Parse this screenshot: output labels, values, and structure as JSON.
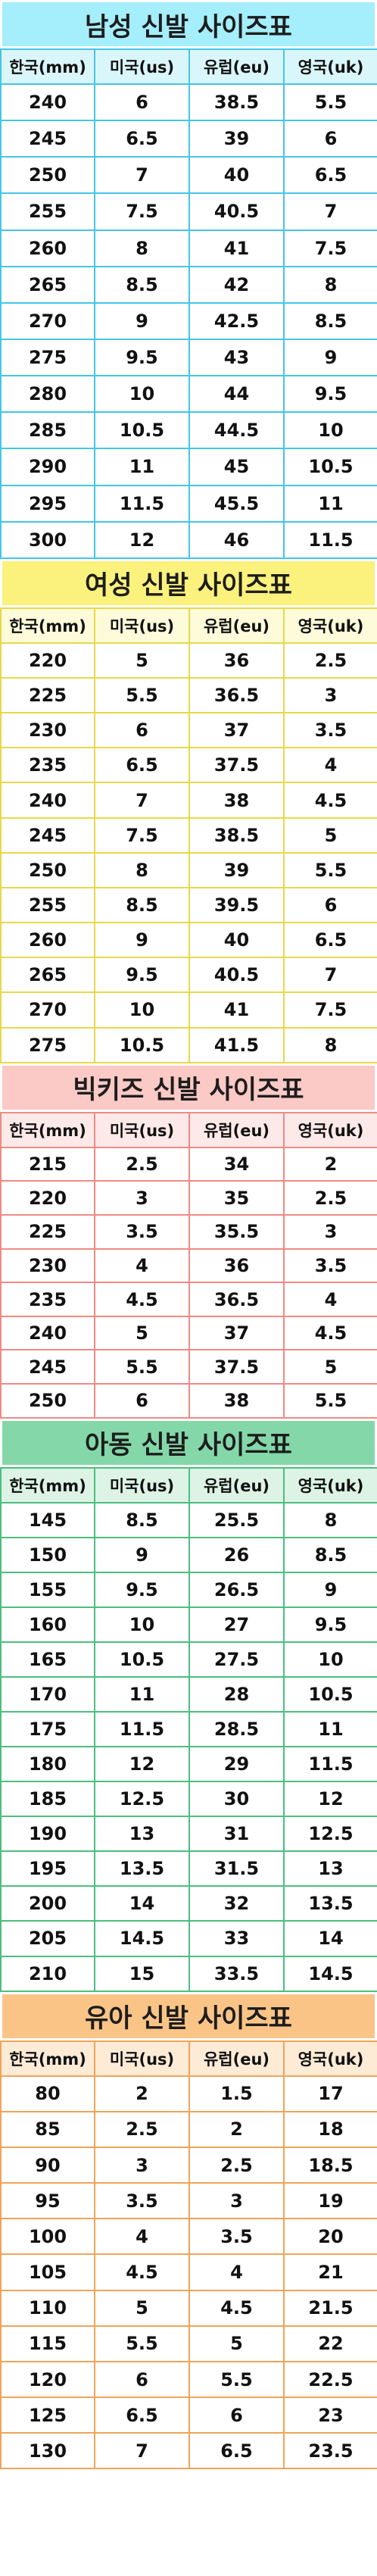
{
  "headers": [
    "한국(mm)",
    "미국(us)",
    "유럽(eu)",
    "영국(uk)"
  ],
  "sections": [
    {
      "title": "남성 신발 사이즈표",
      "colors": {
        "banner": "#a5eefc",
        "header": "#d9f6fb",
        "border": "#43c6e8"
      },
      "rows": [
        [
          "240",
          "6",
          "38.5",
          "5.5"
        ],
        [
          "245",
          "6.5",
          "39",
          "6"
        ],
        [
          "250",
          "7",
          "40",
          "6.5"
        ],
        [
          "255",
          "7.5",
          "40.5",
          "7"
        ],
        [
          "260",
          "8",
          "41",
          "7.5"
        ],
        [
          "265",
          "8.5",
          "42",
          "8"
        ],
        [
          "270",
          "9",
          "42.5",
          "8.5"
        ],
        [
          "275",
          "9.5",
          "43",
          "9"
        ],
        [
          "280",
          "10",
          "44",
          "9.5"
        ],
        [
          "285",
          "10.5",
          "44.5",
          "10"
        ],
        [
          "290",
          "11",
          "45",
          "10.5"
        ],
        [
          "295",
          "11.5",
          "45.5",
          "11"
        ],
        [
          "300",
          "12",
          "46",
          "11.5"
        ]
      ]
    },
    {
      "title": "여성 신발 사이즈표",
      "colors": {
        "banner": "#fbf17d",
        "header": "#fdfbd9",
        "border": "#e8d84a"
      },
      "rows": [
        [
          "220",
          "5",
          "36",
          "2.5"
        ],
        [
          "225",
          "5.5",
          "36.5",
          "3"
        ],
        [
          "230",
          "6",
          "37",
          "3.5"
        ],
        [
          "235",
          "6.5",
          "37.5",
          "4"
        ],
        [
          "240",
          "7",
          "38",
          "4.5"
        ],
        [
          "245",
          "7.5",
          "38.5",
          "5"
        ],
        [
          "250",
          "8",
          "39",
          "5.5"
        ],
        [
          "255",
          "8.5",
          "39.5",
          "6"
        ],
        [
          "260",
          "9",
          "40",
          "6.5"
        ],
        [
          "265",
          "9.5",
          "40.5",
          "7"
        ],
        [
          "270",
          "10",
          "41",
          "7.5"
        ],
        [
          "275",
          "10.5",
          "41.5",
          "8"
        ]
      ]
    },
    {
      "title": "빅키즈 신발 사이즈표",
      "colors": {
        "banner": "#fbc9c6",
        "header": "#fde9e8",
        "border": "#f08a84"
      },
      "rows": [
        [
          "215",
          "2.5",
          "34",
          "2"
        ],
        [
          "220",
          "3",
          "35",
          "2.5"
        ],
        [
          "225",
          "3.5",
          "35.5",
          "3"
        ],
        [
          "230",
          "4",
          "36",
          "3.5"
        ],
        [
          "235",
          "4.5",
          "36.5",
          "4"
        ],
        [
          "240",
          "5",
          "37",
          "4.5"
        ],
        [
          "245",
          "5.5",
          "37.5",
          "5"
        ],
        [
          "250",
          "6",
          "38",
          "5.5"
        ]
      ]
    },
    {
      "title": "아동 신발 사이즈표",
      "colors": {
        "banner": "#84d7a9",
        "header": "#dcf3e5",
        "border": "#4cbf7f"
      },
      "rows": [
        [
          "145",
          "8.5",
          "25.5",
          "8"
        ],
        [
          "150",
          "9",
          "26",
          "8.5"
        ],
        [
          "155",
          "9.5",
          "26.5",
          "9"
        ],
        [
          "160",
          "10",
          "27",
          "9.5"
        ],
        [
          "165",
          "10.5",
          "27.5",
          "10"
        ],
        [
          "170",
          "11",
          "28",
          "10.5"
        ],
        [
          "175",
          "11.5",
          "28.5",
          "11"
        ],
        [
          "180",
          "12",
          "29",
          "11.5"
        ],
        [
          "185",
          "12.5",
          "30",
          "12"
        ],
        [
          "190",
          "13",
          "31",
          "12.5"
        ],
        [
          "195",
          "13.5",
          "31.5",
          "13"
        ],
        [
          "200",
          "14",
          "32",
          "13.5"
        ],
        [
          "205",
          "14.5",
          "33",
          "14"
        ],
        [
          "210",
          "15",
          "33.5",
          "14.5"
        ]
      ]
    },
    {
      "title": "유아 신발 사이즈표",
      "colors": {
        "banner": "#fbc487",
        "header": "#fdebd6",
        "border": "#f0a45a"
      },
      "rows": [
        [
          "80",
          "2",
          "1.5",
          "17"
        ],
        [
          "85",
          "2.5",
          "2",
          "18"
        ],
        [
          "90",
          "3",
          "2.5",
          "18.5"
        ],
        [
          "95",
          "3.5",
          "3",
          "19"
        ],
        [
          "100",
          "4",
          "3.5",
          "20"
        ],
        [
          "105",
          "4.5",
          "4",
          "21"
        ],
        [
          "110",
          "5",
          "4.5",
          "21.5"
        ],
        [
          "115",
          "5.5",
          "5",
          "22"
        ],
        [
          "120",
          "6",
          "5.5",
          "22.5"
        ],
        [
          "125",
          "6.5",
          "6",
          "23"
        ],
        [
          "130",
          "7",
          "6.5",
          "23.5"
        ]
      ]
    }
  ]
}
